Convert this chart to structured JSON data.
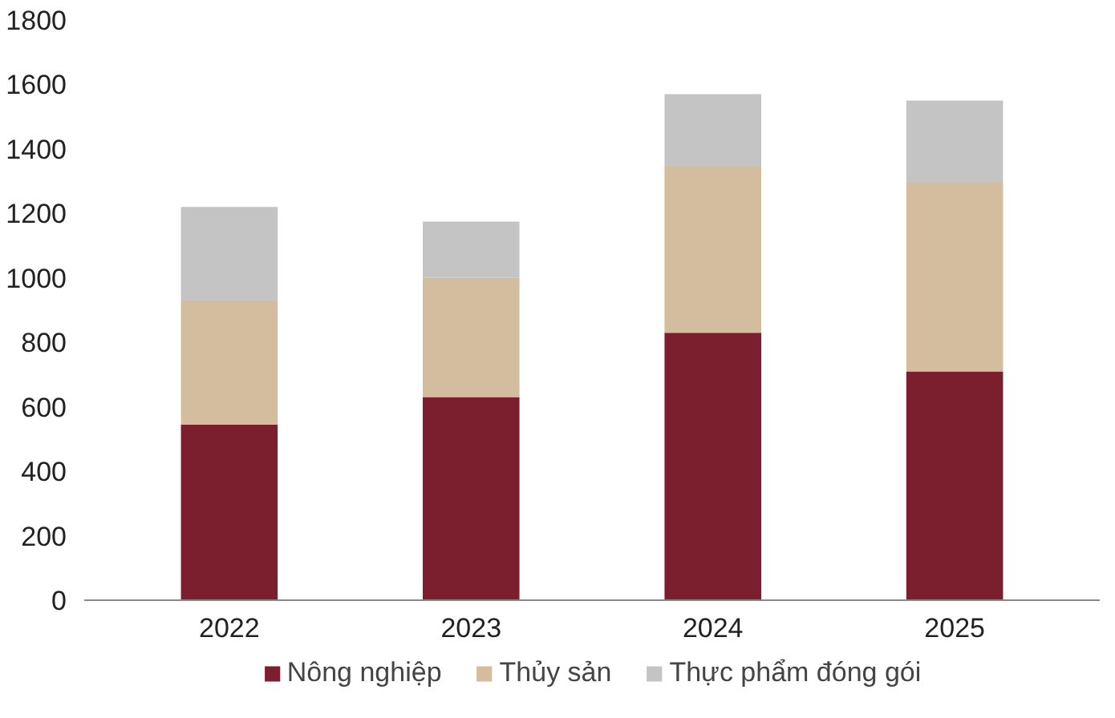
{
  "chart_data": {
    "type": "bar",
    "stacked": true,
    "categories": [
      "2022",
      "2023",
      "2024",
      "2025"
    ],
    "series": [
      {
        "name": "Nông nghiệp",
        "color": "#7b1f2e",
        "values": [
          545,
          630,
          830,
          710
        ]
      },
      {
        "name": "Thủy sản",
        "color": "#d4bc9e",
        "values": [
          385,
          370,
          515,
          585
        ]
      },
      {
        "name": "Thực phẩm đóng gói",
        "color": "#c4c4c4",
        "values": [
          290,
          175,
          225,
          255
        ]
      }
    ],
    "ylim": [
      0,
      1800
    ],
    "yticks": [
      0,
      200,
      400,
      600,
      800,
      1000,
      1200,
      1400,
      1600,
      1800
    ],
    "grid": false,
    "legend": "bottom"
  }
}
